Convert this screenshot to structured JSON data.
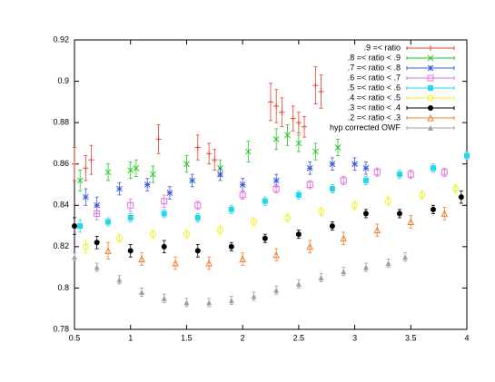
{
  "chart_data": {
    "type": "errorbar-scatter",
    "xlim": [
      0.5,
      4
    ],
    "xticks": [
      0.5,
      1,
      1.5,
      2,
      2.5,
      3,
      3.5,
      4
    ],
    "ylim": [
      0.78,
      0.92
    ],
    "yticks": [
      0.78,
      0.8,
      0.82,
      0.84,
      0.86,
      0.88,
      0.9,
      0.92
    ],
    "legend": "top-right",
    "series": [
      {
        "name": ".9 =< ratio",
        "color": "#e8402a",
        "marker": "plus",
        "x": [
          0.5,
          0.6,
          0.65,
          1.25,
          1.6,
          1.7,
          1.75,
          2.25,
          2.3,
          2.35,
          2.45,
          2.5,
          2.55,
          2.65,
          2.7
        ],
        "values": [
          0.86,
          0.858,
          0.862,
          0.872,
          0.868,
          0.865,
          0.862,
          0.89,
          0.888,
          0.885,
          0.882,
          0.88,
          0.878,
          0.898,
          0.895
        ],
        "errors": [
          0.008,
          0.006,
          0.007,
          0.007,
          0.006,
          0.005,
          0.005,
          0.009,
          0.008,
          0.007,
          0.006,
          0.005,
          0.005,
          0.009,
          0.008
        ]
      },
      {
        "name": ".8 =< ratio < .9",
        "color": "#22c722",
        "marker": "cross",
        "x": [
          0.55,
          0.8,
          1.0,
          1.05,
          1.2,
          1.5,
          1.8,
          2.05,
          2.3,
          2.4,
          2.5,
          2.65,
          2.85
        ],
        "values": [
          0.852,
          0.856,
          0.857,
          0.858,
          0.855,
          0.86,
          0.858,
          0.866,
          0.872,
          0.874,
          0.87,
          0.866,
          0.868
        ],
        "errors": [
          0.005,
          0.004,
          0.004,
          0.004,
          0.004,
          0.004,
          0.004,
          0.005,
          0.005,
          0.005,
          0.004,
          0.004,
          0.004
        ]
      },
      {
        "name": ".7 =< ratio < .8",
        "color": "#3a5ae0",
        "marker": "star",
        "x": [
          0.6,
          0.7,
          0.9,
          1.15,
          1.35,
          1.55,
          1.8,
          2.0,
          2.3,
          2.6,
          2.8,
          3.0,
          3.1
        ],
        "values": [
          0.844,
          0.84,
          0.848,
          0.85,
          0.846,
          0.852,
          0.855,
          0.85,
          0.852,
          0.858,
          0.86,
          0.86,
          0.858
        ],
        "errors": [
          0.004,
          0.004,
          0.003,
          0.003,
          0.003,
          0.003,
          0.003,
          0.003,
          0.003,
          0.003,
          0.003,
          0.003,
          0.003
        ]
      },
      {
        "name": ".6 =< ratio < .7",
        "color": "#e070e0",
        "marker": "square",
        "x": [
          0.7,
          1.0,
          1.3,
          1.6,
          2.0,
          2.3,
          2.6,
          2.9,
          3.2,
          3.5,
          3.8
        ],
        "values": [
          0.836,
          0.84,
          0.842,
          0.84,
          0.845,
          0.848,
          0.85,
          0.852,
          0.856,
          0.855,
          0.856
        ],
        "errors": [
          0.003,
          0.003,
          0.003,
          0.002,
          0.002,
          0.002,
          0.002,
          0.002,
          0.002,
          0.002,
          0.002
        ]
      },
      {
        "name": ".5 =< ratio < .6",
        "color": "#22d8e8",
        "marker": "filled-square",
        "x": [
          0.55,
          0.8,
          1.0,
          1.3,
          1.6,
          1.9,
          2.2,
          2.5,
          2.8,
          3.1,
          3.4,
          3.7,
          4.0
        ],
        "values": [
          0.83,
          0.832,
          0.834,
          0.836,
          0.834,
          0.838,
          0.842,
          0.845,
          0.848,
          0.852,
          0.855,
          0.858,
          0.864
        ],
        "errors": [
          0.003,
          0.002,
          0.002,
          0.002,
          0.002,
          0.002,
          0.002,
          0.002,
          0.002,
          0.002,
          0.002,
          0.002,
          0.002
        ]
      },
      {
        "name": ".4 =< ratio < .5",
        "color": "#f0f020",
        "marker": "circle",
        "x": [
          0.6,
          0.9,
          1.2,
          1.5,
          1.8,
          2.1,
          2.4,
          2.7,
          3.0,
          3.3,
          3.6,
          3.9
        ],
        "values": [
          0.82,
          0.824,
          0.826,
          0.826,
          0.828,
          0.832,
          0.834,
          0.837,
          0.84,
          0.842,
          0.845,
          0.848
        ],
        "errors": [
          0.003,
          0.002,
          0.002,
          0.002,
          0.002,
          0.002,
          0.002,
          0.002,
          0.002,
          0.002,
          0.002,
          0.002
        ]
      },
      {
        "name": ".3 =< ratio < .4",
        "color": "#000000",
        "marker": "filled-circle",
        "x": [
          0.5,
          0.7,
          1.0,
          1.3,
          1.6,
          1.9,
          2.2,
          2.5,
          2.8,
          3.1,
          3.4,
          3.7,
          3.95
        ],
        "values": [
          0.83,
          0.822,
          0.818,
          0.82,
          0.818,
          0.82,
          0.824,
          0.826,
          0.83,
          0.836,
          0.836,
          0.838,
          0.844
        ],
        "errors": [
          0.004,
          0.003,
          0.003,
          0.003,
          0.003,
          0.002,
          0.002,
          0.002,
          0.002,
          0.002,
          0.002,
          0.002,
          0.003
        ]
      },
      {
        "name": ".2 =< ratio < .3",
        "color": "#f08030",
        "marker": "triangle",
        "x": [
          0.8,
          1.1,
          1.4,
          1.7,
          2.0,
          2.3,
          2.6,
          2.9,
          3.2,
          3.5,
          3.8
        ],
        "values": [
          0.818,
          0.814,
          0.812,
          0.812,
          0.814,
          0.816,
          0.82,
          0.824,
          0.828,
          0.832,
          0.836
        ],
        "errors": [
          0.004,
          0.003,
          0.003,
          0.003,
          0.003,
          0.003,
          0.003,
          0.003,
          0.003,
          0.003,
          0.003
        ]
      },
      {
        "name": "hyp corrected OWF",
        "color": "#a0a0a0",
        "marker": "filled-triangle",
        "x": [
          0.5,
          0.7,
          0.9,
          1.1,
          1.3,
          1.5,
          1.7,
          1.9,
          2.1,
          2.3,
          2.5,
          2.7,
          2.9,
          3.1,
          3.3,
          3.45
        ],
        "values": [
          0.815,
          0.81,
          0.804,
          0.798,
          0.795,
          0.793,
          0.793,
          0.794,
          0.796,
          0.799,
          0.802,
          0.805,
          0.808,
          0.81,
          0.812,
          0.815
        ],
        "errors": [
          0.002,
          0.002,
          0.002,
          0.002,
          0.002,
          0.002,
          0.002,
          0.002,
          0.002,
          0.002,
          0.002,
          0.002,
          0.002,
          0.002,
          0.002,
          0.002
        ]
      }
    ]
  }
}
